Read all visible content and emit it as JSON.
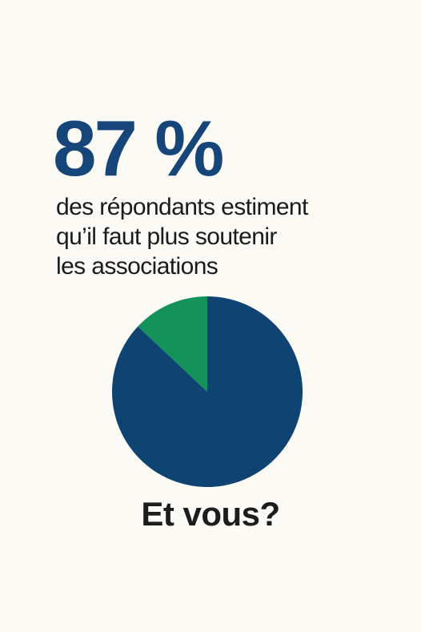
{
  "headline": "87 %",
  "subtitle_lines": [
    "des répondants estiment",
    "qu’il faut plus soutenir",
    "les associations"
  ],
  "cta": "Et vous?",
  "colors": {
    "background": "#fbfaf5",
    "primary": "#0f4472",
    "secondary": "#13925a"
  },
  "chart_data": {
    "type": "pie",
    "categories": [
      "",
      ""
    ],
    "values": [
      87,
      13
    ],
    "colors": [
      "#0f4472",
      "#13925a"
    ],
    "title": "",
    "legend": "none"
  }
}
